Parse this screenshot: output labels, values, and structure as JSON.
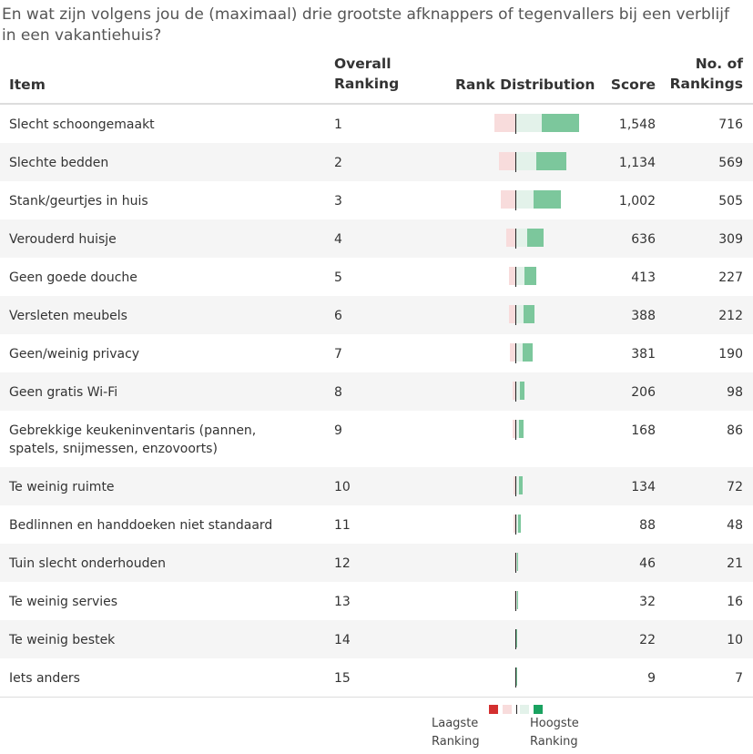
{
  "question": "En wat zijn volgens jou de (maximaal) drie grootste afknappers of tegenvallers bij een verblijf in een vakantiehuis?",
  "headers": {
    "item": "Item",
    "overall_line1": "Overall",
    "overall_line2": "Ranking",
    "distribution": "Rank Distribution",
    "score": "Score",
    "count_line1": "No. of",
    "count_line2": "Rankings"
  },
  "colors": {
    "rank_lowest": "#d32f2f",
    "rank_low": "#f8dcdc",
    "rank_mid": "#e3f2ea",
    "rank_high": "#7cc79c",
    "axis": "#222222"
  },
  "rows": [
    {
      "item": "Slecht schoongemaakt",
      "rank": "1",
      "score": "1,548",
      "count": "716"
    },
    {
      "item": "Slechte bedden",
      "rank": "2",
      "score": "1,134",
      "count": "569"
    },
    {
      "item": "Stank/geurtjes in huis",
      "rank": "3",
      "score": "1,002",
      "count": "505"
    },
    {
      "item": "Verouderd huisje",
      "rank": "4",
      "score": "636",
      "count": "309"
    },
    {
      "item": "Geen goede douche",
      "rank": "5",
      "score": "413",
      "count": "227"
    },
    {
      "item": "Versleten meubels",
      "rank": "6",
      "score": "388",
      "count": "212"
    },
    {
      "item": "Geen/weinig privacy",
      "rank": "7",
      "score": "381",
      "count": "190"
    },
    {
      "item": "Geen gratis Wi-Fi",
      "rank": "8",
      "score": "206",
      "count": "98"
    },
    {
      "item": "Gebrekkige keukeninventaris (pannen, spatels, snijmessen, enzovoorts)",
      "rank": "9",
      "score": "168",
      "count": "86"
    },
    {
      "item": "Te weinig ruimte",
      "rank": "10",
      "score": "134",
      "count": "72"
    },
    {
      "item": "Bedlinnen en handdoeken niet standaard",
      "rank": "11",
      "score": "88",
      "count": "48"
    },
    {
      "item": "Tuin slecht onderhouden",
      "rank": "12",
      "score": "46",
      "count": "21"
    },
    {
      "item": "Te weinig servies",
      "rank": "13",
      "score": "32",
      "count": "16"
    },
    {
      "item": "Te weinig bestek",
      "rank": "14",
      "score": "22",
      "count": "10"
    },
    {
      "item": "Iets anders",
      "rank": "15",
      "score": "9",
      "count": "7"
    }
  ],
  "legend": {
    "lowest_line1": "Laagste",
    "lowest_line2": "Ranking",
    "highest_line1": "Hoogste",
    "highest_line2": "Ranking"
  }
}
